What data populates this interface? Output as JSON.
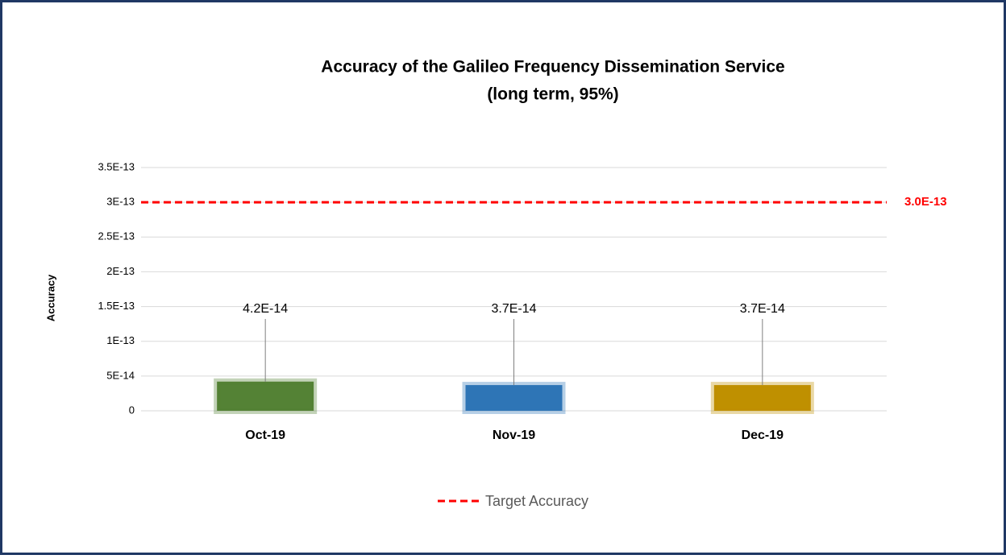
{
  "chart_data": {
    "type": "bar",
    "title": "Accuracy of the Galileo Frequency Dissemination Service",
    "subtitle": "(long term, 95%)",
    "y_label": "Accuracy",
    "categories": [
      "Oct-19",
      "Nov-19",
      "Dec-19"
    ],
    "values": [
      4.2e-14,
      3.7e-14,
      3.7e-14
    ],
    "value_labels": [
      "4.2E-14",
      "3.7E-14",
      "3.7E-14"
    ],
    "colors": [
      "#548235",
      "#2e75b6",
      "#bf9000"
    ],
    "ylim": [
      0,
      3.5e-13
    ],
    "yticks": [
      0,
      {
        "value": 5e-14,
        "label": "5E-14"
      },
      {
        "value": 1e-13,
        "label": "1E-13"
      },
      {
        "value": 1.5e-13,
        "label": "1.5E-13"
      },
      {
        "value": 2e-13,
        "label": "2E-13"
      },
      {
        "value": 2.5e-13,
        "label": "2.5E-13"
      },
      {
        "value": 3e-13,
        "label": "3E-13"
      },
      {
        "value": 3.5e-13,
        "label": "3.5E-13"
      }
    ],
    "grid": true,
    "reference_line": {
      "name": "Target Accuracy",
      "value": 3e-13,
      "value_label": "3.0E-13",
      "color": "#ff0000"
    },
    "legend": "bottom"
  }
}
